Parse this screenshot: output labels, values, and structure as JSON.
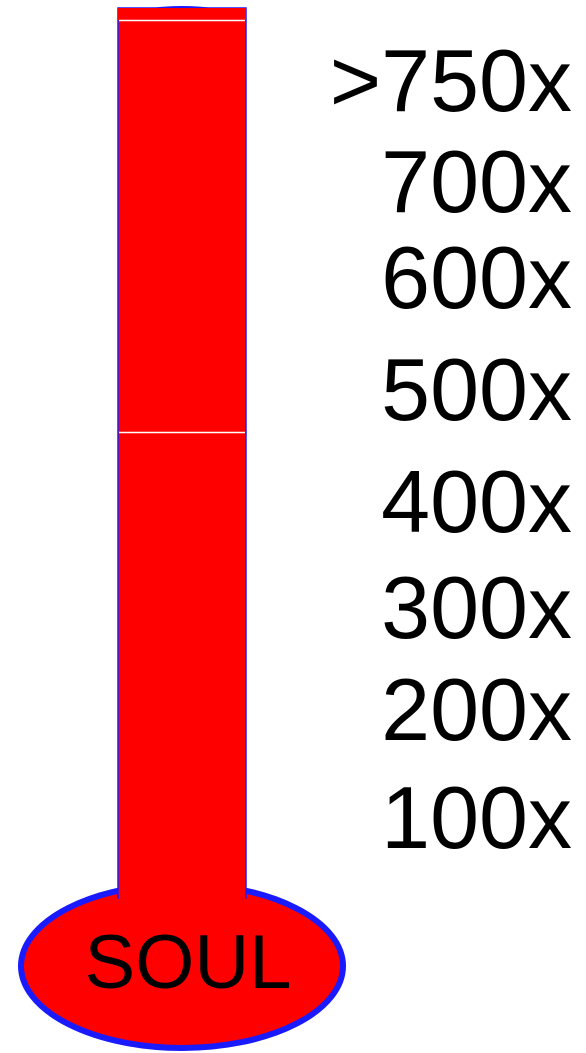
{
  "scale_labels": [
    ">750x",
    "700x",
    "600x",
    "500x",
    "400x",
    "300x",
    "200x",
    "100x"
  ],
  "bulb_label": "SOUL",
  "fill_fraction": 1.0,
  "colors": {
    "fill": "#ff0000",
    "outline": "#1a1aff",
    "divider": "#ffffff",
    "text": "#000000"
  }
}
